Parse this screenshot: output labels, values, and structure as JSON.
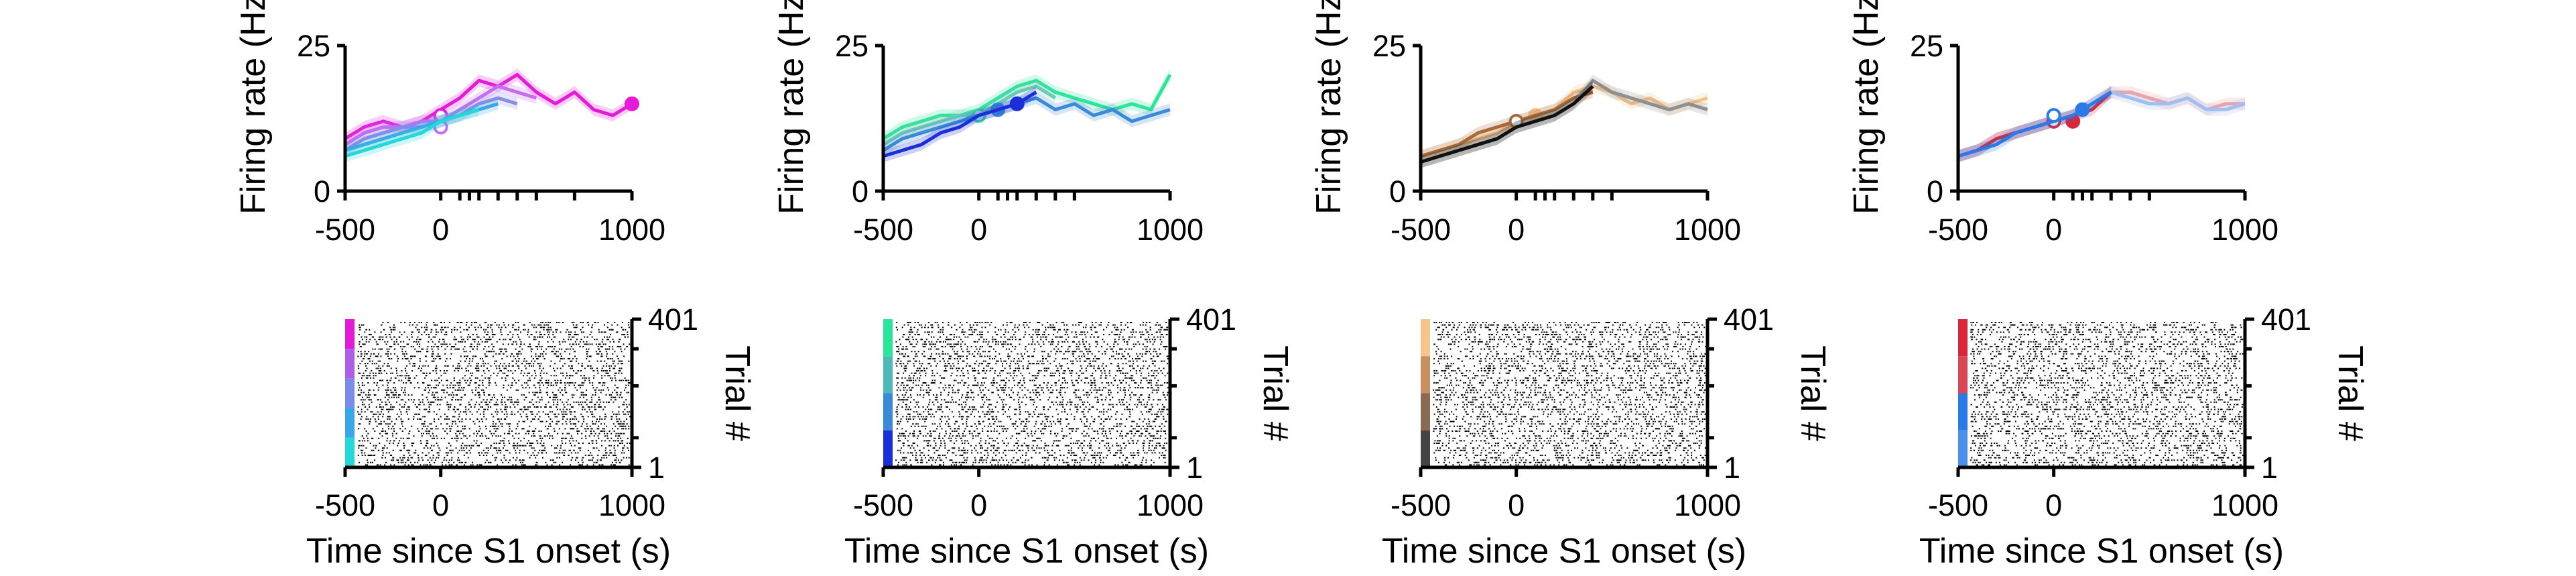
{
  "chart_data": [
    {
      "type": "line",
      "xlabel": "",
      "ylabel": "Firing rate (Hz)",
      "xlim": [
        -500,
        1000
      ],
      "ylim": [
        0,
        25
      ],
      "xticks": [
        -500,
        0,
        1000
      ],
      "yticks": [
        0,
        25
      ],
      "minor_xticks": [
        100,
        150,
        200,
        300,
        400,
        500,
        700
      ],
      "series": [
        {
          "color": "#e41ad8",
          "x": [
            -500,
            -400,
            -300,
            -200,
            -100,
            0,
            100,
            200,
            300,
            400,
            500,
            600,
            700,
            800,
            900,
            1000
          ],
          "y": [
            9,
            11,
            12,
            11,
            12,
            14,
            16,
            19,
            18,
            20,
            17,
            15,
            17,
            14,
            13,
            15
          ],
          "markers": [
            {
              "x": 0,
              "y": 13,
              "hollow": true
            },
            {
              "x": 1000,
              "y": 15,
              "hollow": false
            }
          ]
        },
        {
          "color": "#c56cf0",
          "x": [
            -500,
            -400,
            -300,
            -200,
            -100,
            0,
            100,
            200,
            300,
            400,
            500
          ],
          "y": [
            8,
            10,
            11,
            11,
            12,
            12,
            14,
            16,
            18,
            17,
            16
          ],
          "markers": [
            {
              "x": 0,
              "y": 11,
              "hollow": true
            }
          ]
        },
        {
          "color": "#8b8be8",
          "x": [
            -500,
            -400,
            -300,
            -200,
            -100,
            0,
            100,
            200,
            300,
            400
          ],
          "y": [
            7,
            9,
            10,
            11,
            11,
            12,
            13,
            15,
            16,
            15
          ],
          "markers": []
        },
        {
          "color": "#3aa8e8",
          "x": [
            -500,
            -400,
            -300,
            -200,
            -100,
            0,
            100,
            200,
            300
          ],
          "y": [
            7,
            8,
            9,
            10,
            11,
            12,
            13,
            14,
            15
          ],
          "markers": []
        },
        {
          "color": "#22d8d8",
          "x": [
            -500,
            -400,
            -300,
            -200,
            -100,
            0,
            100,
            200
          ],
          "y": [
            6,
            7,
            8,
            9,
            10,
            12,
            13,
            14
          ],
          "markers": []
        }
      ],
      "raster": {
        "ylabel": "Trial #",
        "yticks": [
          1,
          401
        ],
        "colors": [
          "#e41ad8",
          "#b05ee6",
          "#7a8ce8",
          "#3aa8e8",
          "#22d8d8"
        ]
      }
    },
    {
      "type": "line",
      "xlabel": "",
      "ylabel": "Firing rate (Hz)",
      "xlim": [
        -500,
        1000
      ],
      "ylim": [
        0,
        25
      ],
      "xticks": [
        -500,
        0,
        1000
      ],
      "yticks": [
        0,
        25
      ],
      "minor_xticks": [
        100,
        150,
        200,
        300,
        400,
        500
      ],
      "series": [
        {
          "color": "#2de59a",
          "x": [
            -500,
            -400,
            -300,
            -200,
            -100,
            0,
            100,
            200,
            300,
            400,
            500,
            600,
            700,
            800,
            900,
            1000
          ],
          "y": [
            9,
            11,
            12,
            13,
            13,
            14,
            16,
            18,
            19,
            17,
            16,
            15,
            14,
            15,
            14,
            20
          ],
          "markers": [
            {
              "x": 0,
              "y": 13,
              "hollow": true
            }
          ]
        },
        {
          "color": "#6ec9b8",
          "x": [
            -500,
            -400,
            -300,
            -200,
            -100,
            0,
            100,
            200,
            300,
            400
          ],
          "y": [
            8,
            10,
            11,
            12,
            13,
            13,
            15,
            17,
            18,
            16
          ],
          "markers": []
        },
        {
          "color": "#3a8ad8",
          "x": [
            -500,
            -400,
            -300,
            -200,
            -100,
            0,
            100,
            200,
            300,
            400,
            500,
            600,
            700,
            800,
            900,
            1000
          ],
          "y": [
            7,
            9,
            10,
            11,
            12,
            13,
            14,
            15,
            16,
            14,
            15,
            13,
            14,
            12,
            13,
            14
          ],
          "markers": [
            {
              "x": 100,
              "y": 14,
              "hollow": false
            }
          ]
        },
        {
          "color": "#1a2fd8",
          "x": [
            -500,
            -400,
            -300,
            -200,
            -100,
            0,
            100,
            200,
            300
          ],
          "y": [
            6,
            7,
            8,
            10,
            11,
            13,
            14,
            15,
            17
          ],
          "markers": [
            {
              "x": 200,
              "y": 15,
              "hollow": false
            }
          ]
        }
      ],
      "raster": {
        "ylabel": "Trial #",
        "yticks": [
          1,
          401
        ],
        "colors": [
          "#2de59a",
          "#4fb8b8",
          "#3a8ad8",
          "#1a2fd8"
        ]
      }
    },
    {
      "type": "line",
      "xlabel": "",
      "ylabel": "Firing rate (Hz)",
      "xlim": [
        -500,
        1000
      ],
      "ylim": [
        0,
        25
      ],
      "xticks": [
        -500,
        0,
        1000
      ],
      "yticks": [
        0,
        25
      ],
      "minor_xticks": [
        100,
        150,
        200,
        300,
        400,
        500
      ],
      "series": [
        {
          "color": "#f5c58a",
          "x": [
            -500,
            -400,
            -300,
            -200,
            -100,
            0,
            100,
            200,
            300,
            400,
            500,
            600,
            700,
            800,
            900,
            1000
          ],
          "y": [
            6,
            7,
            8,
            9,
            10,
            12,
            13,
            14,
            17,
            18,
            17,
            15,
            16,
            14,
            15,
            16
          ],
          "markers": [
            {
              "x": 100,
              "y": 13,
              "hollow": false
            }
          ]
        },
        {
          "color": "#a86a3a",
          "x": [
            -500,
            -400,
            -300,
            -200,
            -100,
            0,
            100,
            200,
            300,
            400
          ],
          "y": [
            6,
            7,
            8,
            10,
            11,
            12,
            13,
            14,
            16,
            17
          ],
          "markers": [
            {
              "x": 0,
              "y": 12,
              "hollow": true
            }
          ]
        },
        {
          "color": "#8f8f8f",
          "x": [
            -500,
            -400,
            -300,
            -200,
            -100,
            0,
            100,
            200,
            300,
            400,
            500,
            600,
            700,
            800,
            900,
            1000
          ],
          "y": [
            5,
            6,
            7,
            8,
            9,
            11,
            12,
            13,
            15,
            19,
            17,
            16,
            15,
            14,
            15,
            14
          ],
          "markers": []
        },
        {
          "color": "#111111",
          "x": [
            -500,
            -400,
            -300,
            -200,
            -100,
            0,
            100,
            200,
            300,
            400
          ],
          "y": [
            5,
            6,
            7,
            8,
            9,
            11,
            12,
            13,
            15,
            18
          ],
          "markers": []
        }
      ],
      "raster": {
        "ylabel": "Trial #",
        "yticks": [
          1,
          401
        ],
        "colors": [
          "#f5c58a",
          "#c89060",
          "#8a6a50",
          "#444444"
        ]
      }
    },
    {
      "type": "line",
      "xlabel": "",
      "ylabel": "Firing rate (Hz)",
      "xlim": [
        -500,
        1000
      ],
      "ylim": [
        0,
        25
      ],
      "xticks": [
        -500,
        0,
        1000
      ],
      "yticks": [
        0,
        25
      ],
      "minor_xticks": [
        100,
        150,
        200,
        300,
        400,
        500
      ],
      "series": [
        {
          "color": "#f2a0a0",
          "x": [
            -500,
            -400,
            -300,
            -200,
            -100,
            0,
            100,
            200,
            300,
            400,
            500,
            600,
            700,
            800,
            900,
            1000
          ],
          "y": [
            6,
            7,
            9,
            10,
            11,
            12,
            13,
            15,
            17,
            17,
            16,
            15,
            16,
            14,
            15,
            15
          ],
          "markers": []
        },
        {
          "color": "#9ec0f2",
          "x": [
            -500,
            -400,
            -300,
            -200,
            -100,
            0,
            100,
            200,
            300,
            400,
            500,
            600,
            700,
            800,
            900,
            1000
          ],
          "y": [
            6,
            7,
            9,
            10,
            11,
            12,
            13,
            15,
            17,
            16,
            15,
            15,
            16,
            14,
            14,
            15
          ],
          "markers": []
        },
        {
          "color": "#d8263a",
          "x": [
            -500,
            -400,
            -300,
            -200,
            -100,
            0,
            100,
            200,
            300
          ],
          "y": [
            6,
            7,
            9,
            10,
            11,
            12,
            13,
            14,
            17
          ],
          "markers": [
            {
              "x": 0,
              "y": 12,
              "hollow": true
            },
            {
              "x": 100,
              "y": 12,
              "hollow": false
            }
          ]
        },
        {
          "color": "#2a7ae8",
          "x": [
            -500,
            -400,
            -300,
            -200,
            -100,
            0,
            100,
            200,
            300
          ],
          "y": [
            6,
            7,
            8,
            10,
            11,
            12,
            13,
            15,
            17
          ],
          "markers": [
            {
              "x": 0,
              "y": 13,
              "hollow": true
            },
            {
              "x": 150,
              "y": 14,
              "hollow": false
            }
          ]
        }
      ],
      "raster": {
        "ylabel": "Trial #",
        "yticks": [
          1,
          401
        ],
        "colors": [
          "#d8263a",
          "#d84858",
          "#2a7ae8",
          "#4a90e8"
        ]
      }
    }
  ],
  "shared": {
    "raster_xlabel": "Time since S1 onset (s)"
  }
}
